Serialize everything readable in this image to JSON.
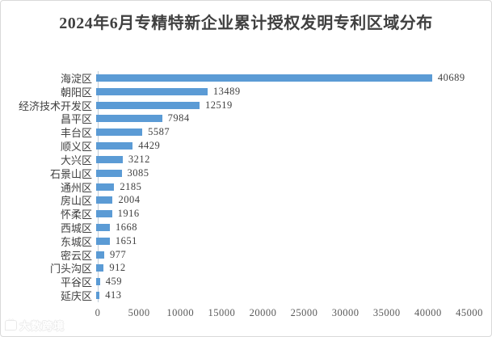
{
  "title": "2024年6月专精特新企业累计授权发明专利区域分布",
  "watermark": {
    "text": "大数跨境"
  },
  "colors": {
    "bar": "#5b9bd5",
    "title_text": "#404040",
    "axis_text": "#595959",
    "label_text": "#404040",
    "axis_line": "#bfcbd6",
    "card_border": "#d9d9d9",
    "background": "#ffffff"
  },
  "chart_data": {
    "type": "bar",
    "orientation": "horizontal",
    "title": "2024年6月专精特新企业累计授权发明专利区域分布",
    "categories": [
      "海淀区",
      "朝阳区",
      "经济技术开发区",
      "昌平区",
      "丰台区",
      "顺义区",
      "大兴区",
      "石景山区",
      "通州区",
      "房山区",
      "怀柔区",
      "西城区",
      "东城区",
      "密云区",
      "门头沟区",
      "平谷区",
      "延庆区"
    ],
    "values": [
      40689,
      13489,
      12519,
      7984,
      5587,
      4429,
      3212,
      3085,
      2185,
      2004,
      1916,
      1668,
      1651,
      977,
      912,
      459,
      413
    ],
    "value_labels_shown": true,
    "xlabel": "",
    "ylabel": "",
    "xlim": [
      0,
      45000
    ],
    "xticks": [
      "0",
      "5000",
      "10000",
      "15000",
      "20000",
      "25000",
      "30000",
      "35000",
      "40000",
      "45000"
    ],
    "grid": false,
    "legend": false
  }
}
